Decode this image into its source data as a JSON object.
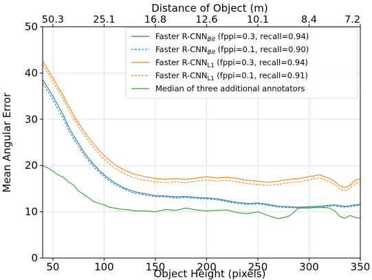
{
  "chart_data": {
    "type": "line",
    "xlabel": "Object Height (pixels)",
    "ylabel": "Mean Angular Error",
    "top_xlabel": "Distance of Object (m)",
    "xlim": [
      40,
      350
    ],
    "ylim": [
      0,
      50
    ],
    "x_ticks": [
      50,
      100,
      150,
      200,
      250,
      300,
      350
    ],
    "y_ticks": [
      0,
      10,
      20,
      30,
      40,
      50
    ],
    "top_ticks": [
      {
        "x": 50,
        "label": "50.3"
      },
      {
        "x": 100,
        "label": "25.1"
      },
      {
        "x": 150,
        "label": "16.8"
      },
      {
        "x": 200,
        "label": "12.6"
      },
      {
        "x": 250,
        "label": "10.1"
      },
      {
        "x": 300,
        "label": "8.4"
      },
      {
        "x": 350,
        "label": "7.2"
      }
    ],
    "grid": true,
    "legend_position": "top-right",
    "x": [
      40,
      45,
      50,
      55,
      60,
      65,
      70,
      75,
      80,
      85,
      90,
      95,
      100,
      105,
      110,
      115,
      120,
      125,
      130,
      140,
      150,
      160,
      170,
      180,
      190,
      200,
      210,
      220,
      230,
      240,
      250,
      260,
      270,
      280,
      290,
      300,
      310,
      320,
      325,
      330,
      335,
      340,
      345,
      350
    ],
    "series": [
      {
        "name": "Faster R-CNN_Bit (fppi=0.3, recall=0.94)",
        "label_base": "Faster R-CNN",
        "label_sub": "Bit",
        "label_rest": " (fppi=0.3, recall=0.94)",
        "color": "#1f77b4",
        "dash": "solid",
        "values": [
          38.6,
          36.8,
          35.0,
          33.0,
          31.0,
          28.5,
          26.5,
          24.8,
          23.0,
          21.5,
          20.2,
          19.0,
          18.0,
          17.1,
          16.3,
          15.7,
          15.1,
          14.7,
          14.3,
          13.9,
          13.5,
          13.4,
          13.2,
          13.3,
          13.1,
          13.0,
          12.8,
          12.4,
          12.0,
          11.8,
          11.9,
          11.6,
          11.2,
          11.1,
          11.0,
          11.1,
          11.2,
          11.4,
          11.5,
          11.3,
          11.2,
          11.3,
          11.5,
          11.6
        ]
      },
      {
        "name": "Faster R-CNN_Bit (fppi=0.1, recall=0.90)",
        "label_base": "Faster R-CNN",
        "label_sub": "Bit",
        "label_rest": " (fppi=0.1, recall=0.90)",
        "color": "#1f77b4",
        "dash": "dashed",
        "values": [
          37.8,
          36.0,
          34.2,
          32.2,
          30.2,
          27.8,
          25.8,
          24.1,
          22.4,
          21.0,
          19.7,
          18.6,
          17.6,
          16.7,
          16.0,
          15.4,
          14.9,
          14.4,
          14.0,
          13.6,
          13.3,
          13.2,
          13.0,
          13.1,
          12.9,
          12.8,
          12.6,
          12.2,
          11.8,
          11.6,
          11.7,
          11.4,
          11.0,
          10.9,
          10.8,
          10.9,
          11.0,
          11.2,
          11.3,
          11.1,
          11.0,
          11.1,
          11.3,
          11.4
        ]
      },
      {
        "name": "Faster R-CNN_L1 (fppi=0.3, recall=0.94)",
        "label_base": "Faster R-CNN",
        "label_sub": "L1",
        "label_rest": " (fppi=0.3, recall=0.94)",
        "color": "#ff7f0e",
        "dash": "solid",
        "values": [
          42.6,
          40.8,
          39.0,
          37.0,
          35.2,
          33.0,
          31.0,
          29.2,
          27.5,
          26.0,
          24.6,
          23.3,
          22.2,
          21.2,
          20.3,
          19.6,
          19.0,
          18.5,
          18.1,
          17.6,
          17.2,
          17.0,
          17.2,
          17.0,
          17.3,
          17.6,
          17.3,
          17.5,
          17.2,
          16.8,
          16.6,
          16.4,
          16.6,
          17.0,
          17.2,
          17.6,
          18.0,
          17.2,
          16.6,
          15.6,
          15.3,
          15.7,
          16.8,
          17.1
        ]
      },
      {
        "name": "Faster R-CNN_L1 (fppi=0.1, recall=0.91)",
        "label_base": "Faster R-CNN",
        "label_sub": "L1",
        "label_rest": " (fppi=0.1, recall=0.91)",
        "color": "#ff7f0e",
        "dash": "dashed",
        "values": [
          41.8,
          40.0,
          38.2,
          36.2,
          34.4,
          32.2,
          30.2,
          28.4,
          26.7,
          25.2,
          23.8,
          22.5,
          21.4,
          20.4,
          19.5,
          18.8,
          18.2,
          17.7,
          17.3,
          16.8,
          16.5,
          16.3,
          16.5,
          16.3,
          16.6,
          16.9,
          16.6,
          16.8,
          16.5,
          16.1,
          15.9,
          15.7,
          15.9,
          16.3,
          16.5,
          16.9,
          17.3,
          16.5,
          15.9,
          14.9,
          14.6,
          15.0,
          16.1,
          16.4
        ]
      },
      {
        "name": "Median of three additional annotators",
        "label_base": "Median of three additional annotators",
        "label_sub": "",
        "label_rest": "",
        "color": "#2ca02c",
        "dash": "solid",
        "values": [
          20.0,
          19.5,
          18.8,
          18.0,
          17.5,
          16.5,
          15.8,
          14.5,
          13.8,
          13.0,
          12.2,
          11.8,
          11.5,
          11.0,
          10.8,
          10.6,
          10.5,
          10.4,
          10.2,
          10.2,
          10.0,
          10.5,
          10.3,
          10.8,
          10.4,
          10.2,
          10.3,
          10.4,
          9.8,
          9.6,
          10.0,
          9.2,
          8.5,
          9.0,
          10.8,
          10.8,
          11.0,
          10.8,
          10.2,
          9.0,
          8.6,
          9.2,
          8.8,
          8.6
        ]
      }
    ]
  }
}
